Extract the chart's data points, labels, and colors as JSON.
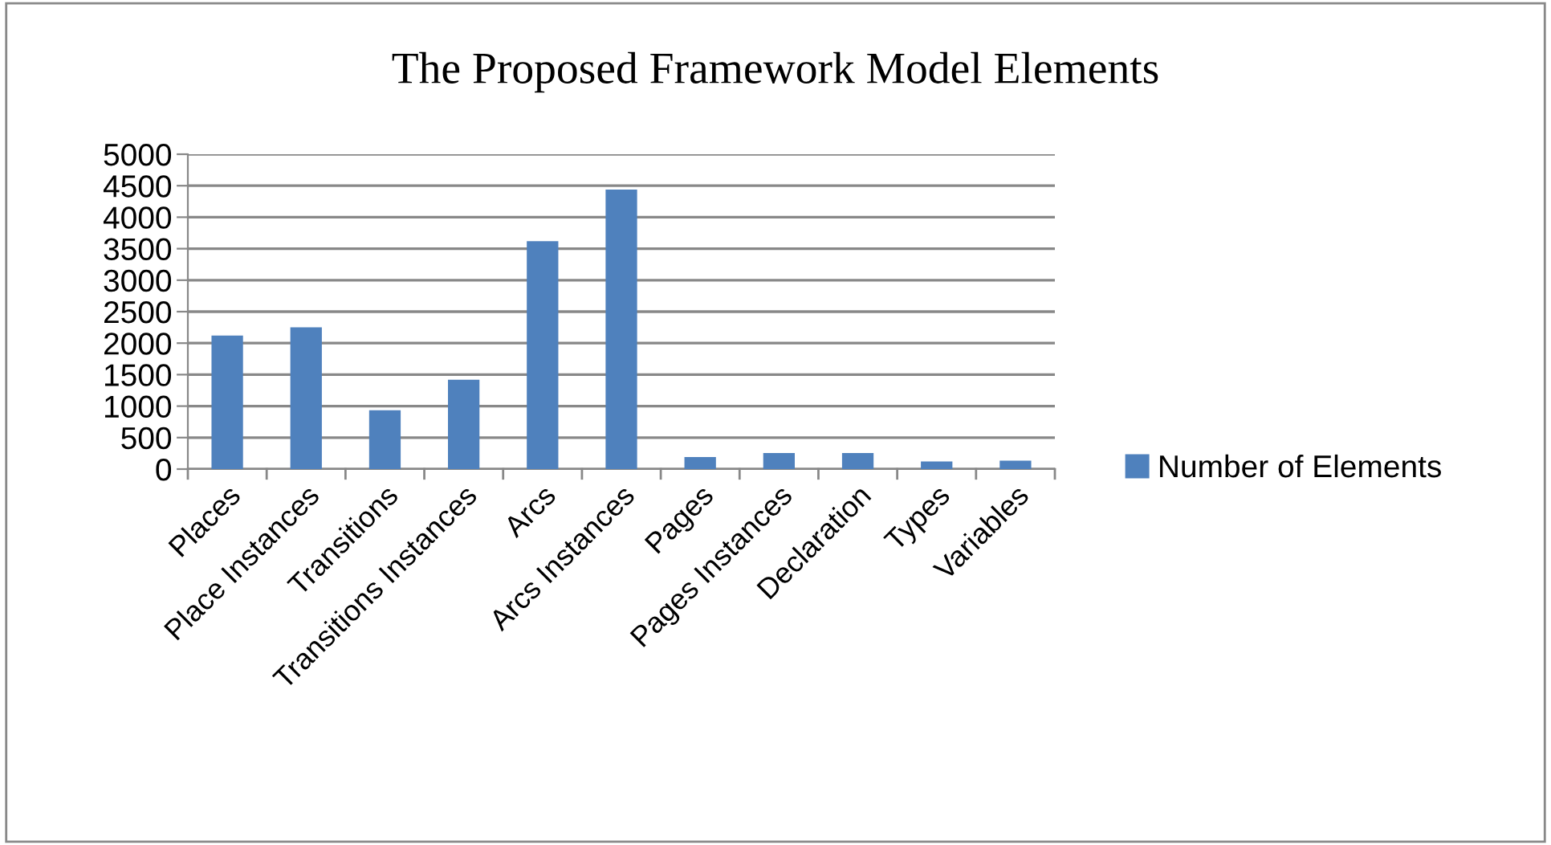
{
  "chart_data": {
    "type": "bar",
    "title": "The Proposed Framework Model Elements",
    "categories": [
      "Places",
      "Place Instances",
      "Transitions",
      "Transitions Instances",
      "Arcs",
      "Arcs Instances",
      "Pages",
      "Pages Instances",
      "Declaration",
      "Types",
      "Variables"
    ],
    "series": [
      {
        "name": "Number of Elements",
        "color": "#4f81bd",
        "values": [
          2120,
          2250,
          935,
          1420,
          3620,
          4440,
          190,
          255,
          255,
          120,
          135
        ]
      }
    ],
    "ylim": [
      0,
      5000
    ],
    "yticks": [
      0,
      500,
      1000,
      1500,
      2000,
      2500,
      3000,
      3500,
      4000,
      4500,
      5000
    ],
    "grid": "y",
    "legend": "right"
  }
}
